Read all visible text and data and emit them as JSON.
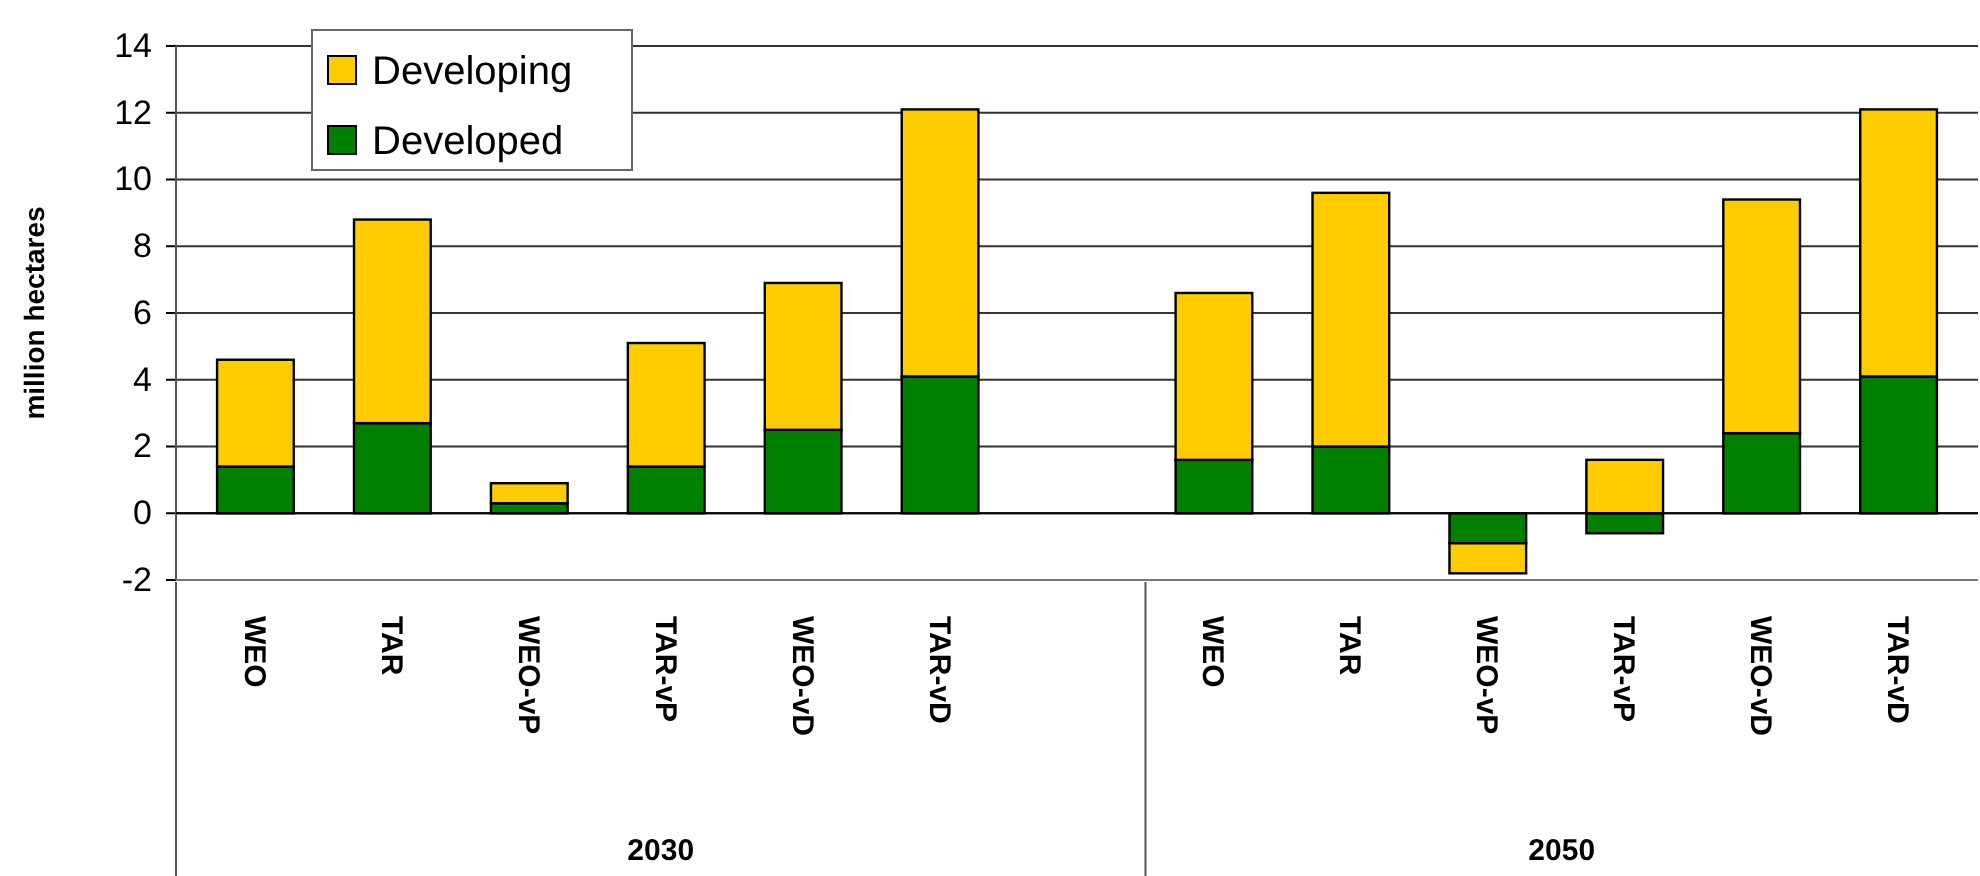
{
  "chart_data": {
    "type": "bar",
    "stacked": true,
    "ylabel": "million hectares",
    "categories": [
      "WEO",
      "TAR",
      "WEO-vP",
      "TAR-vP",
      "WEO-vD",
      "TAR-vD",
      null,
      "WEO",
      "TAR",
      "WEO-vP",
      "TAR-vP",
      "WEO-vD",
      "TAR-vD"
    ],
    "series": [
      {
        "name": "Developed",
        "color": "#008000",
        "values": [
          1.4,
          2.7,
          0.3,
          1.4,
          2.5,
          4.1,
          null,
          1.6,
          2.0,
          -0.9,
          -0.6,
          2.4,
          4.1
        ]
      },
      {
        "name": "Developing",
        "color": "#ffcc00",
        "values": [
          3.2,
          6.1,
          0.6,
          3.7,
          4.4,
          8.0,
          null,
          5.0,
          7.6,
          -0.9,
          1.6,
          7.0,
          8.0
        ]
      }
    ],
    "ylim": [
      -2,
      14
    ],
    "yticks": [
      -2,
      0,
      2,
      4,
      6,
      8,
      10,
      12,
      14
    ],
    "grid": "y",
    "legend": "top left",
    "annotations": [
      "2030",
      "2050"
    ]
  }
}
